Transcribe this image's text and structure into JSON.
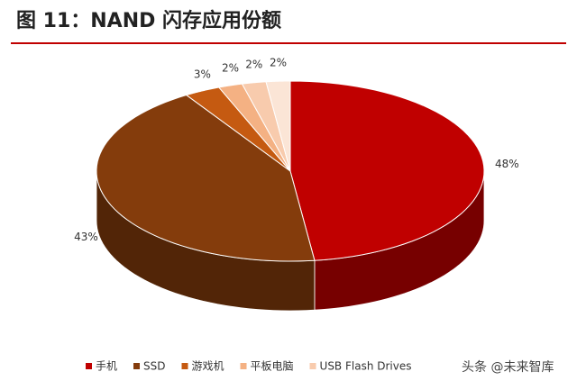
{
  "chart_data": {
    "type": "pie3d",
    "title": "图 11：NAND 闪存应用份额",
    "categories": [
      "手机",
      "SSD",
      "游戏机",
      "平板电脑",
      "USB Flash Drives",
      null
    ],
    "values": [
      48,
      43,
      3,
      2,
      2,
      2
    ],
    "value_labels": [
      "48%",
      "43%",
      "3%",
      "2%",
      "2%",
      "2%"
    ],
    "colors": [
      "#c00000",
      "#843c0c",
      "#c55a11",
      "#f4b183",
      "#f8cbad",
      "#fbe5d6"
    ],
    "watermark": "头条 @未来智库"
  }
}
